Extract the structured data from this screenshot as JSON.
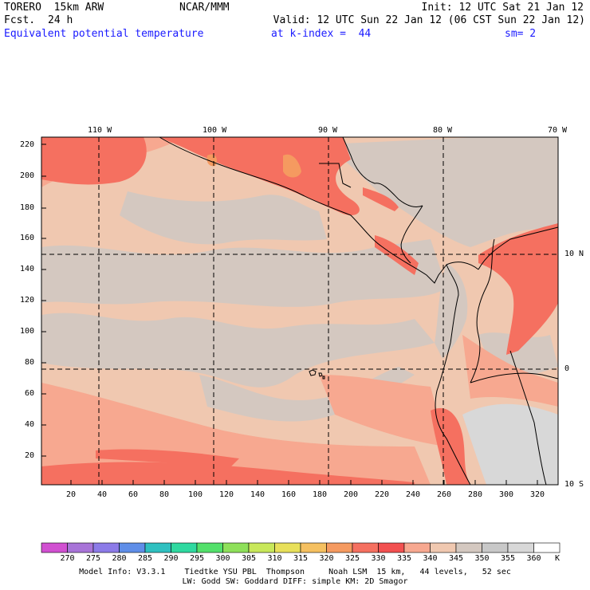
{
  "header": {
    "model": "TORERO  15km ARW",
    "center": "NCAR/MMM",
    "init": "Init: 12 UTC Sat 21 Jan 12",
    "fcst_label": "Fcst.",
    "fcst_value": "24 h",
    "valid": "Valid: 12 UTC Sun 22 Jan 12 (06 CST Sun 22 Jan 12)",
    "field": "Equivalent potential temperature",
    "level": "at k-index =  44",
    "smooth": "sm= 2"
  },
  "map": {
    "top_lon_labels": [
      "110 W",
      "100 W",
      "90 W",
      "80 W",
      "70 W"
    ],
    "right_lat_labels": [
      "10 N",
      "0",
      "10 S"
    ],
    "left_axis_labels": [
      "220",
      "200",
      "180",
      "160",
      "140",
      "120",
      "100",
      "80",
      "60",
      "40",
      "20"
    ],
    "bottom_axis_labels": [
      "20",
      "40",
      "60",
      "80",
      "100",
      "120",
      "140",
      "160",
      "180",
      "200",
      "220",
      "240",
      "260",
      "280",
      "300",
      "320"
    ]
  },
  "colorbar": {
    "levels": [
      "270",
      "275",
      "280",
      "285",
      "290",
      "295",
      "300",
      "305",
      "310",
      "315",
      "320",
      "325",
      "330",
      "335",
      "340",
      "345",
      "350",
      "355",
      "360"
    ],
    "unit": "K",
    "colors": [
      "#d150d1",
      "#a874d8",
      "#8c7be8",
      "#5f8ee8",
      "#2fc0c0",
      "#2fd9a0",
      "#53e06b",
      "#8ee05a",
      "#c8e85a",
      "#e8e05a",
      "#f5c060",
      "#f59a60",
      "#f57060",
      "#f25050",
      "#f7a890",
      "#f0c8b0",
      "#d4c8c0",
      "#c8c8c8",
      "#d8d8d8",
      "#ffffff"
    ]
  },
  "footer": {
    "line1": "Model Info: V3.3.1    Tiedtke YSU PBL  Thompson     Noah LSM  15 km,   44 levels,   52 sec",
    "line2": "LW: Godd SW: Goddard DIFF: simple KM: 2D Smagor"
  }
}
